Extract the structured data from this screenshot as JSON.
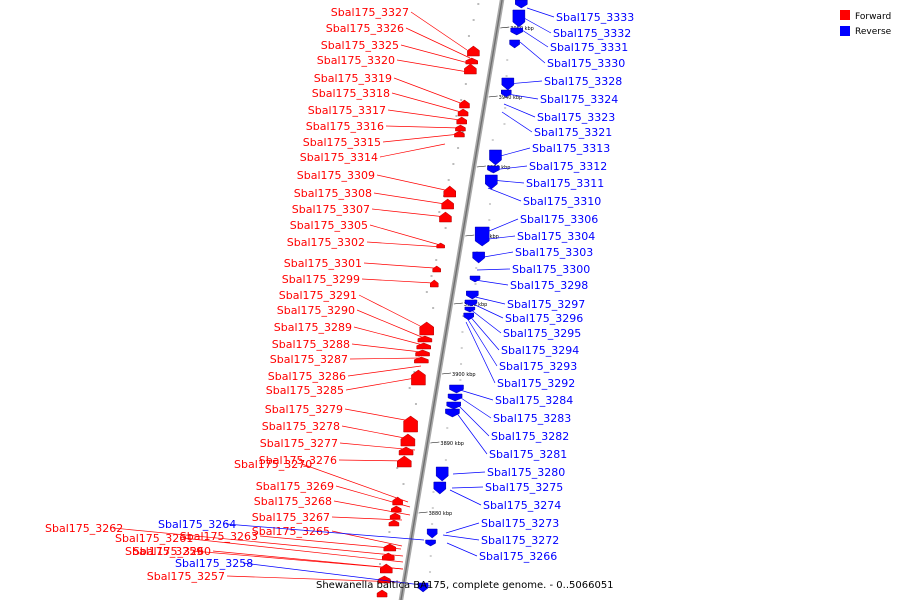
{
  "title": "Shewanella baltica BA175, complete genome. - 0..5066051",
  "legend": [
    {
      "label": "Forward",
      "color": "#ff0000"
    },
    {
      "label": "Reverse",
      "color": "#0000ff"
    }
  ],
  "scale_ticks": [
    "3950 kbp",
    "3940 kbp",
    "3930 kbp",
    "3920 kbp",
    "3910 kbp",
    "3900 kbp",
    "3890 kbp",
    "3880 kbp"
  ],
  "forward_genes": [
    "Sbal175_3327",
    "Sbal175_3326",
    "Sbal175_3325",
    "Sbal175_3320",
    "Sbal175_3319",
    "Sbal175_3318",
    "Sbal175_3317",
    "Sbal175_3316",
    "Sbal175_3315",
    "Sbal175_3314",
    "Sbal175_3309",
    "Sbal175_3308",
    "Sbal175_3307",
    "Sbal175_3305",
    "Sbal175_3302",
    "Sbal175_3301",
    "Sbal175_3299",
    "Sbal175_3291",
    "Sbal175_3290",
    "Sbal175_3289",
    "Sbal175_3288",
    "Sbal175_3287",
    "Sbal175_3286",
    "Sbal175_3285",
    "Sbal175_3279",
    "Sbal175_3278",
    "Sbal175_3277",
    "Sbal175_3270",
    "Sbal175_3276",
    "Sbal175_3269",
    "Sbal175_3268",
    "Sbal175_3267",
    "Sbal175_3265",
    "Sbal175_3263",
    "Sbal175_3262",
    "Sbal175_3261",
    "Sbal175_3260",
    "Sbal175_3259",
    "Sbal175_3257"
  ],
  "reverse_genes": [
    "Sbal175_3333",
    "Sbal175_3332",
    "Sbal175_3331",
    "Sbal175_3330",
    "Sbal175_3328",
    "Sbal175_3324",
    "Sbal175_3323",
    "Sbal175_3321",
    "Sbal175_3313",
    "Sbal175_3312",
    "Sbal175_3311",
    "Sbal175_3310",
    "Sbal175_3306",
    "Sbal175_3304",
    "Sbal175_3303",
    "Sbal175_3300",
    "Sbal175_3298",
    "Sbal175_3297",
    "Sbal175_3296",
    "Sbal175_3295",
    "Sbal175_3294",
    "Sbal175_3293",
    "Sbal175_3292",
    "Sbal175_3284",
    "Sbal175_3283",
    "Sbal175_3282",
    "Sbal175_3281",
    "Sbal175_3280",
    "Sbal175_3275",
    "Sbal175_3274",
    "Sbal175_3273",
    "Sbal175_3272",
    "Sbal175_3266",
    "Sbal175_3264",
    "Sbal175_3258"
  ]
}
